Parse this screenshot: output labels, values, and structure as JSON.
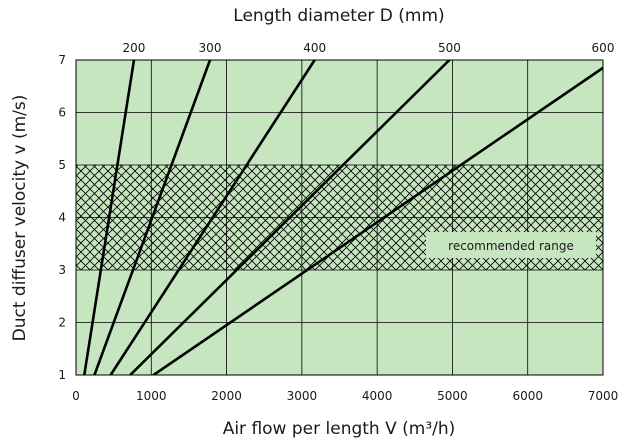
{
  "chart_data": {
    "type": "line",
    "title": "",
    "xlabel": "Air flow per length V (m³/h)",
    "ylabel": "Duct diffuser velocity v (m/s)",
    "top_axis_label": "Length diameter D (mm)",
    "xlim": [
      0,
      7000
    ],
    "ylim": [
      1,
      7
    ],
    "x_ticks": [
      "0",
      "1000",
      "2000",
      "3000",
      "4000",
      "5000",
      "6000",
      "7000"
    ],
    "y_ticks": [
      "1",
      "2",
      "3",
      "4",
      "5",
      "6",
      "7"
    ],
    "grid": true,
    "plot_background": "#c6e6c0",
    "line_color": "#000000",
    "series": [
      {
        "name": "200",
        "points": [
          [
            110,
            1
          ],
          [
            770,
            7
          ]
        ]
      },
      {
        "name": "300",
        "points": [
          [
            245,
            1
          ],
          [
            1780,
            7
          ]
        ]
      },
      {
        "name": "400",
        "points": [
          [
            460,
            1
          ],
          [
            3170,
            7
          ]
        ]
      },
      {
        "name": "500",
        "points": [
          [
            720,
            1
          ],
          [
            4960,
            7
          ]
        ]
      },
      {
        "name": "600",
        "points": [
          [
            1030,
            1
          ],
          [
            7000,
            6.85
          ]
        ]
      }
    ],
    "shaded_band": {
      "y_from": 3,
      "y_to": 5,
      "pattern": "crosshatch",
      "label": "recommended range"
    }
  }
}
